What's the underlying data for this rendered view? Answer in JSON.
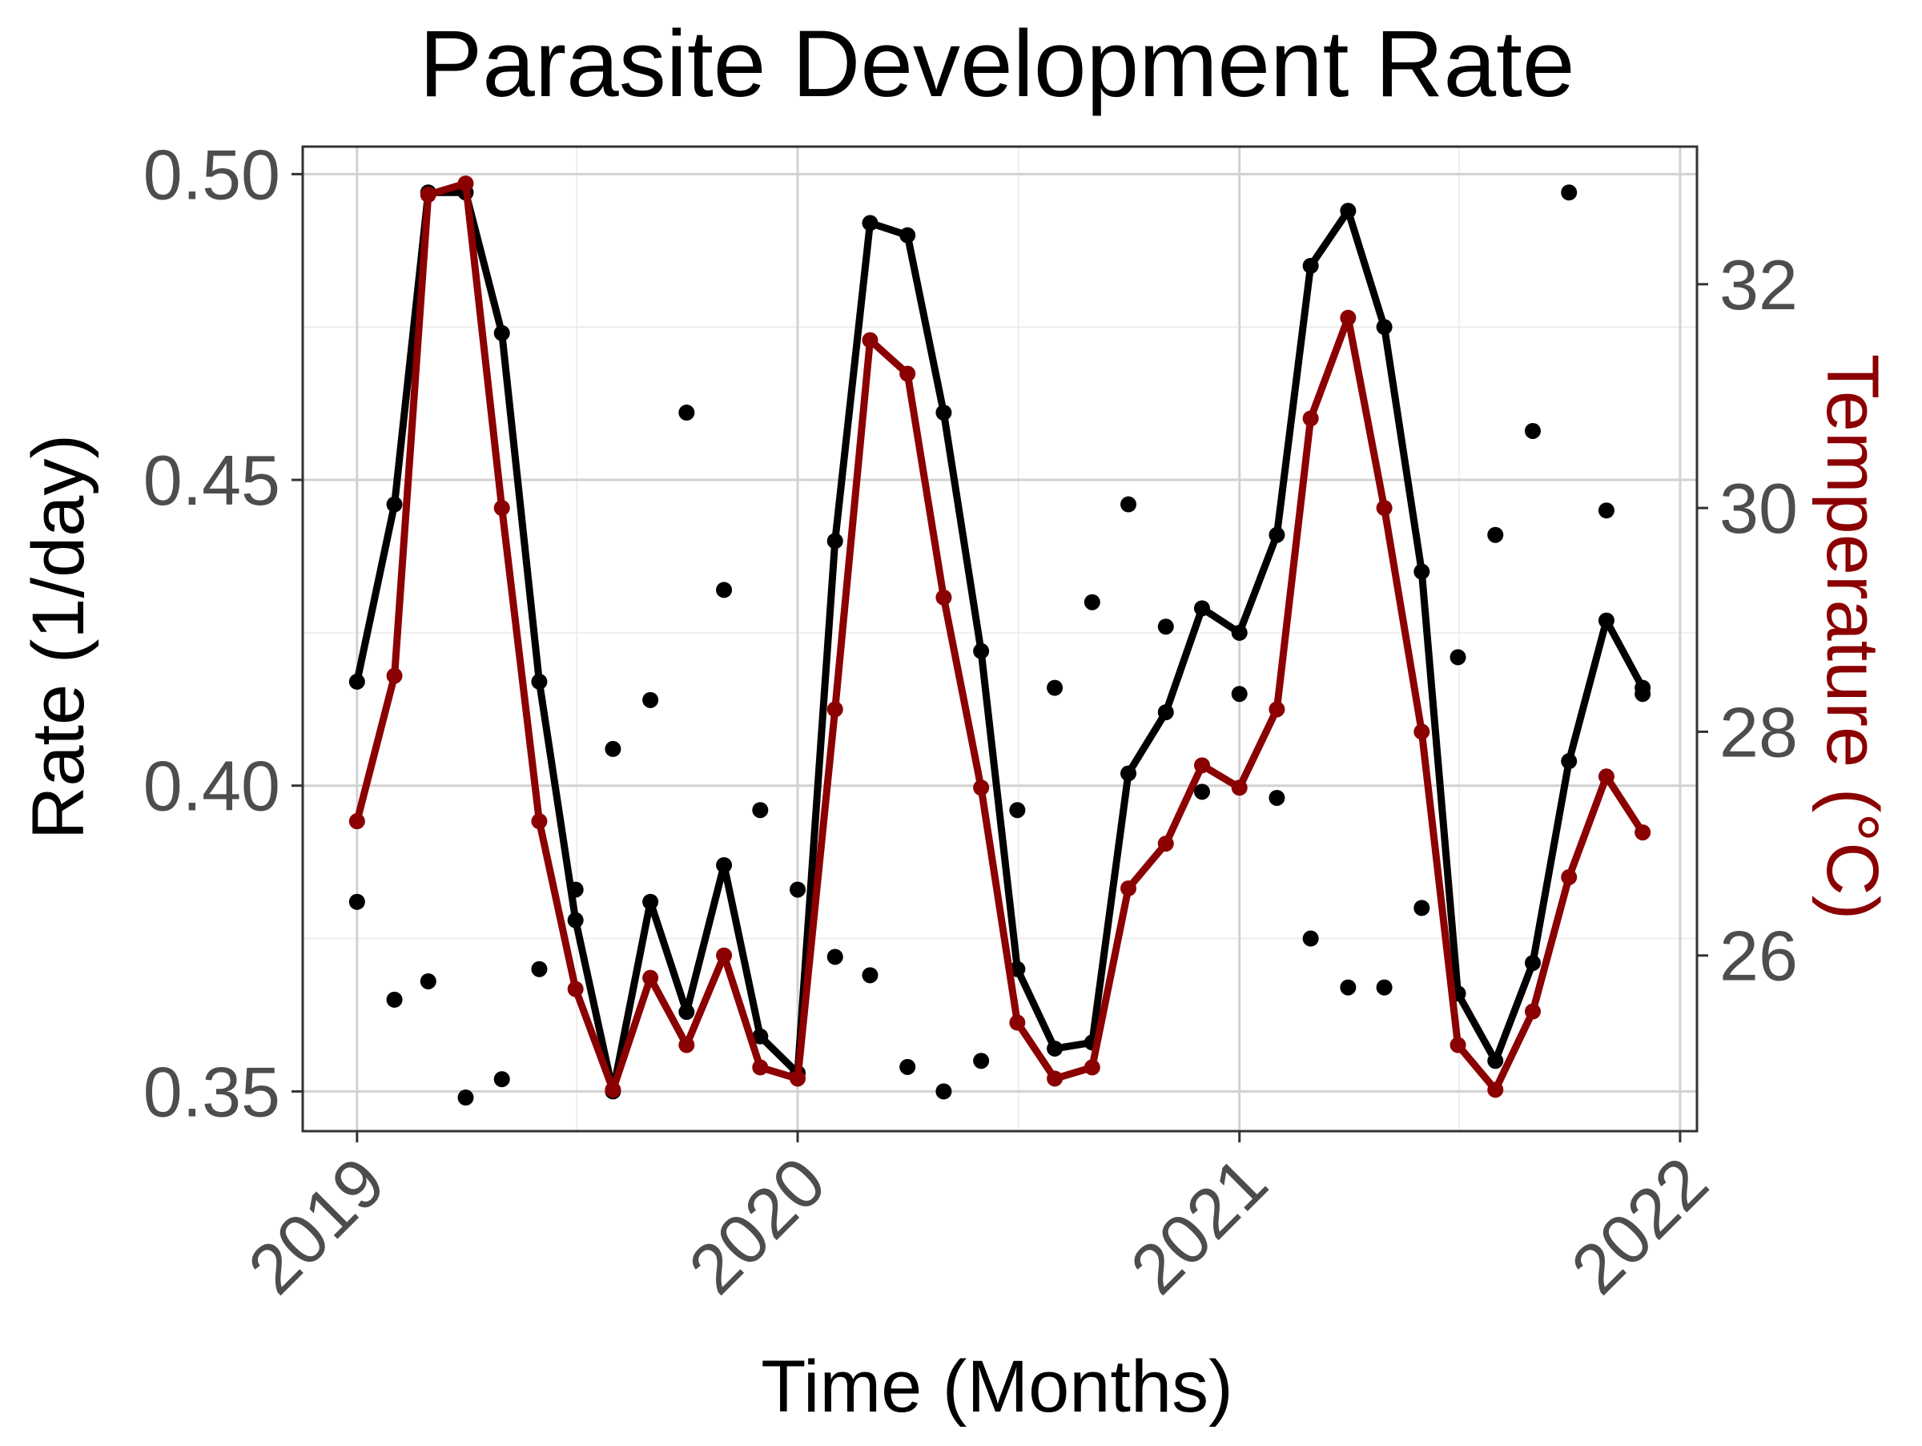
{
  "chart_data": {
    "type": "line",
    "title": "Parasite Development Rate",
    "xlabel": "Time (Months)",
    "ylabel": "Rate (1/day)",
    "ylabel_right": "Temperature (°C)",
    "x_ticks": [
      "2019",
      "2020",
      "2021",
      "2022"
    ],
    "y_ticks": [
      "0.35",
      "0.40",
      "0.45",
      "0.50"
    ],
    "y2_ticks": [
      "26",
      "28",
      "30",
      "32"
    ],
    "xlim": [
      "2018-11-17",
      "2022-01-15"
    ],
    "ylim": [
      0.3435,
      0.5045
    ],
    "y2lim": [
      24.43,
      33.23
    ],
    "grid": true,
    "colors": {
      "rate": "#000000",
      "temperature": "#8b0000"
    },
    "dates": [
      "2019-01-01",
      "2019-02-01",
      "2019-03-01",
      "2019-04-01",
      "2019-05-01",
      "2019-06-01",
      "2019-07-01",
      "2019-08-01",
      "2019-09-01",
      "2019-10-01",
      "2019-11-01",
      "2019-12-01",
      "2020-01-01",
      "2020-02-01",
      "2020-03-01",
      "2020-04-01",
      "2020-05-01",
      "2020-06-01",
      "2020-07-01",
      "2020-08-01",
      "2020-09-01",
      "2020-10-01",
      "2020-11-01",
      "2020-12-01",
      "2021-01-01",
      "2021-02-01",
      "2021-03-01",
      "2021-04-01",
      "2021-05-01",
      "2021-06-01",
      "2021-07-01",
      "2021-08-01",
      "2021-09-01",
      "2021-10-01",
      "2021-11-01",
      "2021-12-01"
    ],
    "series": [
      {
        "type": "line",
        "axis": "left",
        "color": "#000000",
        "values": [
          0.417,
          0.446,
          0.497,
          0.497,
          0.474,
          0.417,
          0.378,
          0.35,
          0.381,
          0.363,
          0.387,
          0.359,
          0.353,
          0.44,
          0.492,
          0.49,
          0.461,
          0.422,
          0.37,
          0.357,
          0.358,
          0.402,
          0.412,
          0.429,
          0.425,
          0.441,
          0.485,
          0.494,
          0.475,
          0.435,
          0.366,
          0.355,
          0.371,
          0.404,
          0.427,
          0.416
        ]
      },
      {
        "type": "line",
        "axis": "right",
        "color": "#8b0000",
        "values": [
          27.2,
          28.5,
          32.8,
          32.9,
          30.0,
          27.2,
          25.7,
          24.8,
          25.8,
          25.2,
          26.0,
          25.0,
          24.9,
          28.2,
          31.5,
          31.2,
          29.2,
          27.5,
          25.4,
          24.9,
          25.0,
          26.6,
          27.0,
          27.7,
          27.5,
          28.2,
          30.8,
          31.7,
          30.0,
          28.0,
          25.2,
          24.8,
          25.5,
          26.7,
          27.6,
          27.1
        ]
      },
      {
        "type": "scatter",
        "axis": "left",
        "color": "#000000",
        "values": [
          0.381,
          0.365,
          0.368,
          0.349,
          0.352,
          0.37,
          0.383,
          0.406,
          0.414,
          0.461,
          0.432,
          0.396,
          0.383,
          0.372,
          0.369,
          0.354,
          0.35,
          0.355,
          0.396,
          0.416,
          0.43,
          0.446,
          0.426,
          0.399,
          0.415,
          0.398,
          0.375,
          0.367,
          0.367,
          0.38,
          0.421,
          0.441,
          0.458,
          0.497,
          0.445,
          0.415
        ]
      }
    ]
  }
}
